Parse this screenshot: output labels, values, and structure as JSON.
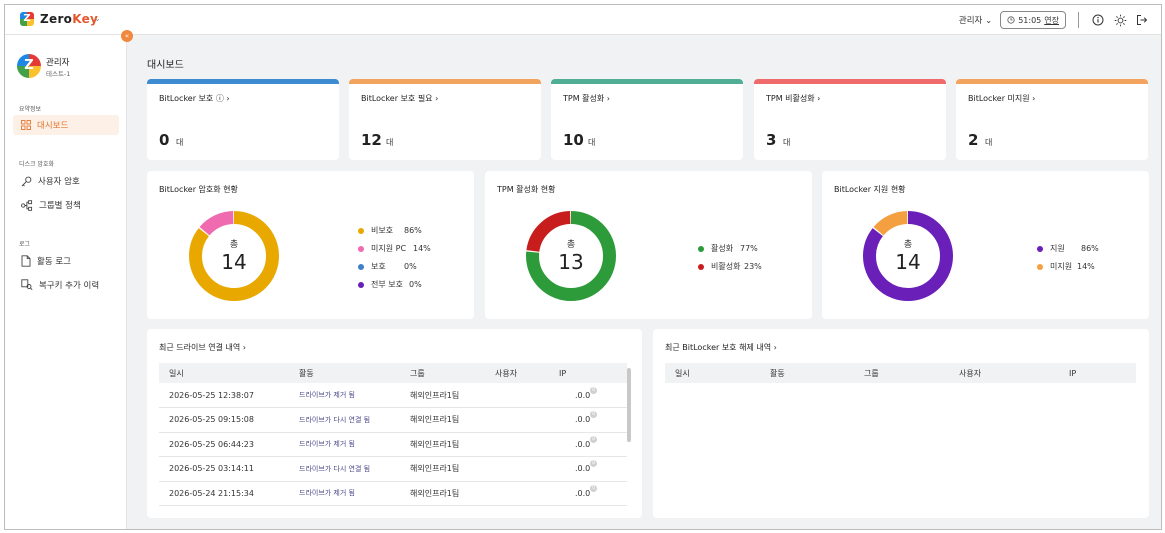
{
  "app": {
    "brand_prefix": "Zero",
    "brand_suffix": "Key",
    "logo_letter": "Z",
    "brand_caret": "⌄"
  },
  "topbar": {
    "admin_menu": "관리자 ⌄",
    "timer_time": "51:05",
    "timer_extend": "연장"
  },
  "user": {
    "name": "관리자",
    "org": "테스트-1",
    "avatar_letter": "Z"
  },
  "sidebar": {
    "sections": [
      {
        "label": "요약정보",
        "items": [
          {
            "label": "대시보드",
            "icon": "grid-icon",
            "active": true
          }
        ]
      },
      {
        "label": "디스크 암호화",
        "items": [
          {
            "label": "사용자 암호",
            "icon": "key-icon"
          },
          {
            "label": "그룹별 정책",
            "icon": "group-policy-icon"
          }
        ]
      },
      {
        "label": "로그",
        "items": [
          {
            "label": "활동 로그",
            "icon": "document-icon"
          },
          {
            "label": "복구키 추가 이력",
            "icon": "key-history-icon"
          }
        ]
      }
    ]
  },
  "page": {
    "title": "대시보드"
  },
  "stats": [
    {
      "label": "BitLocker 보호 ⓘ ›",
      "value": "0",
      "unit": "대",
      "color": "#3d8bd0"
    },
    {
      "label": "BitLocker 보호 필요 ›",
      "value": "12",
      "unit": "대",
      "color": "#f2a35e"
    },
    {
      "label": "TPM 활성화 ›",
      "value": "10",
      "unit": "대",
      "color": "#4fae93"
    },
    {
      "label": "TPM 비활성화 ›",
      "value": "3",
      "unit": "대",
      "color": "#ef6b6b"
    },
    {
      "label": "BitLocker 미지원 ›",
      "value": "2",
      "unit": "대",
      "color": "#f2a35e"
    }
  ],
  "charts": {
    "encryption": {
      "title": "BitLocker 암호화 현황",
      "center_label": "총",
      "total": "14",
      "legend": [
        {
          "name": "비보호",
          "pct": "86%",
          "value": 86,
          "color": "#e8a800"
        },
        {
          "name": "미지원 PC",
          "pct": "14%",
          "value": 14,
          "color": "#f06ab0"
        },
        {
          "name": "보호",
          "pct": "0%",
          "value": 0,
          "color": "#3d7fc8"
        },
        {
          "name": "전부 보호",
          "pct": "0%",
          "value": 0,
          "color": "#6a1fb8"
        }
      ]
    },
    "tpm": {
      "title": "TPM 활성화 현황",
      "center_label": "총",
      "total": "13",
      "legend": [
        {
          "name": "활성화",
          "pct": "77%",
          "value": 77,
          "color": "#2e9b3a"
        },
        {
          "name": "비활성화",
          "pct": "23%",
          "value": 23,
          "color": "#c81d1d"
        }
      ]
    },
    "support": {
      "title": "BitLocker 지원 현황",
      "center_label": "총",
      "total": "14",
      "legend": [
        {
          "name": "지원",
          "pct": "86%",
          "value": 86,
          "color": "#6a1fb8"
        },
        {
          "name": "미지원",
          "pct": "14%",
          "value": 14,
          "color": "#f5a040"
        }
      ]
    }
  },
  "drive_table": {
    "title": "최근 드라이브 연결 내역 ›",
    "headers": [
      "일시",
      "활동",
      "그룹",
      "사용자",
      "IP"
    ],
    "rows": [
      {
        "time": "2026-05-25 12:38:07",
        "activity": "드라이브가 제거 됨",
        "group": "해외인프라1팀",
        "user": "",
        "ip": ".0.0",
        "ip_badge": "0"
      },
      {
        "time": "2026-05-25 09:15:08",
        "activity": "드라이브가 다시 연결 됨",
        "group": "해외인프라1팀",
        "user": "",
        "ip": ".0.0",
        "ip_badge": "0"
      },
      {
        "time": "2026-05-25 06:44:23",
        "activity": "드라이브가 제거 됨",
        "group": "해외인프라1팀",
        "user": "",
        "ip": ".0.0",
        "ip_badge": "0"
      },
      {
        "time": "2026-05-25 03:14:11",
        "activity": "드라이브가 다시 연결 됨",
        "group": "해외인프라1팀",
        "user": "",
        "ip": ".0.0",
        "ip_badge": "0"
      },
      {
        "time": "2026-05-24 21:15:34",
        "activity": "드라이브가 제거 됨",
        "group": "해외인프라1팀",
        "user": "",
        "ip": ".0.0",
        "ip_badge": "0"
      }
    ]
  },
  "unprotect_table": {
    "title": "최근 BitLocker 보호 해제 내역 ›",
    "headers": [
      "일시",
      "활동",
      "그룹",
      "사용자",
      "IP"
    ]
  }
}
